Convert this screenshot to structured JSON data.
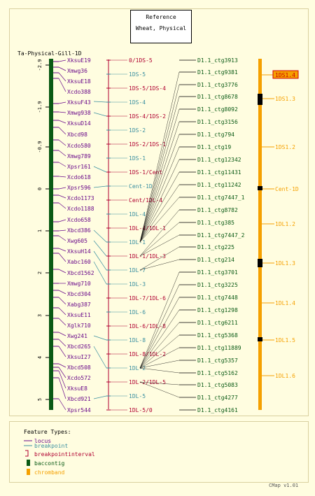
{
  "reference": {
    "title": "Reference",
    "subtitle": "Wheat, Physical"
  },
  "map_title": "Ta-Physical-Gill-1D",
  "axis_ticks": [
    "-2.9",
    "-1.9",
    "-0.9",
    "0",
    "1",
    "2",
    "3",
    "4",
    "5"
  ],
  "loci": [
    "XksuE19",
    "Xmwg36",
    "XksuE18",
    "Xcdo388",
    "XksuF43",
    "Xmwg938",
    "XksuD14",
    "Xbcd98",
    "Xcdo580",
    "Xmwg789",
    "Xpsr161",
    "Xcdo618",
    "Xpsr596",
    "Xcdo1173",
    "Xcdo1188",
    "Xcdo658",
    "Xbcd386",
    "Xwg605",
    "XksuH14",
    "Xabc160",
    "Xbcd1562",
    "Xmwg710",
    "Xbcd304",
    "Xabg387",
    "XksuE11",
    "Xglk710",
    "Xwg241",
    "Xbcd265",
    "XksuI27",
    "Xbcd508",
    "Xcdo572",
    "XksuE8",
    "Xbcd921",
    "Xpsr544"
  ],
  "breakpoints": [
    {
      "label": "0/1DS-5",
      "kind": "interval"
    },
    {
      "label": "1DS-5",
      "kind": "point"
    },
    {
      "label": "1DS-5/1DS-4",
      "kind": "interval"
    },
    {
      "label": "1DS-4",
      "kind": "point"
    },
    {
      "label": "1DS-4/1DS-2",
      "kind": "interval"
    },
    {
      "label": "1DS-2",
      "kind": "point"
    },
    {
      "label": "1DS-2/1DS-1",
      "kind": "interval"
    },
    {
      "label": "1DS-1",
      "kind": "point"
    },
    {
      "label": "1DS-1/Cent",
      "kind": "interval"
    },
    {
      "label": "Cent-1D",
      "kind": "point"
    },
    {
      "label": "Cent/1DL-4",
      "kind": "interval"
    },
    {
      "label": "1DL-4",
      "kind": "point"
    },
    {
      "label": "1DL-4/1DL-1",
      "kind": "interval"
    },
    {
      "label": "1DL-1",
      "kind": "point"
    },
    {
      "label": "1DL-1/1DL-3",
      "kind": "interval"
    },
    {
      "label": "1DL-7",
      "kind": "point"
    },
    {
      "label": "1DL-3",
      "kind": "point"
    },
    {
      "label": "1DL-7/1DL-6",
      "kind": "interval"
    },
    {
      "label": "1DL-6",
      "kind": "point"
    },
    {
      "label": "1DL-6/1DL-8",
      "kind": "interval"
    },
    {
      "label": "1DL-8",
      "kind": "point"
    },
    {
      "label": "1DL-8/1DL-2",
      "kind": "interval"
    },
    {
      "label": "1DL-2",
      "kind": "point"
    },
    {
      "label": "1DL-2/1DL-5",
      "kind": "interval"
    },
    {
      "label": "1DL-5",
      "kind": "point"
    },
    {
      "label": "1DL-5/0",
      "kind": "interval"
    }
  ],
  "contigs": [
    "D1.1_ctg3913",
    "D1.1_ctg9381",
    "D1.1_ctg3776",
    "D1.1_ctg8678",
    "D1.1_ctg8092",
    "D1.1_ctg3156",
    "D1.1_ctg794",
    "D1.1_ctg19",
    "D1.1_ctg12342",
    "D1.1_ctg11431",
    "D1.1_ctg11242",
    "D1.1_ctg7447_1",
    "D1.1_ctg8782",
    "D1.1_ctg385",
    "D1.1_ctg7447_2",
    "D1.1_ctg225",
    "D1.1_ctg214",
    "D1.1_ctg3701",
    "D1.1_ctg3225",
    "D1.1_ctg7448",
    "D1.1_ctg1298",
    "D1.1_ctg6211",
    "D1.1_ctg5368",
    "D1.1_ctg11889",
    "D1.1_ctg5357",
    "D1.1_ctg5162",
    "D1.1_ctg5083",
    "D1.1_ctg4277",
    "D1.1_ctg4161"
  ],
  "chrombands": [
    {
      "label": "1DS1.4",
      "highlight": true
    },
    {
      "label": "1DS1.3",
      "highlight": false
    },
    {
      "label": "1DS1.2",
      "highlight": false
    },
    {
      "label": "Cent-1D",
      "highlight": false
    },
    {
      "label": "1DL1.2",
      "highlight": false
    },
    {
      "label": "1DL1.3",
      "highlight": false
    },
    {
      "label": "1DL1.4",
      "highlight": false
    },
    {
      "label": "1DL1.5",
      "highlight": false
    },
    {
      "label": "1DL1.6",
      "highlight": false
    }
  ],
  "legend": {
    "title": "Feature Types:",
    "items": [
      {
        "label": "locus",
        "color": "#6a0a8a"
      },
      {
        "label": "breakpoint",
        "color": "#3a8fa0"
      },
      {
        "label": "breakpointinterval",
        "color": "#b00030"
      },
      {
        "label": "baccontig",
        "color": "#0a5a14"
      },
      {
        "label": "chromband",
        "color": "#f5a000"
      }
    ]
  },
  "colors": {
    "locus": "#6a0a8a",
    "breakpoint": "#3a8fa0",
    "interval": "#b00030",
    "contig": "#0a5a14",
    "chromband": "#f5a000"
  },
  "footer": "CMap v1.01"
}
